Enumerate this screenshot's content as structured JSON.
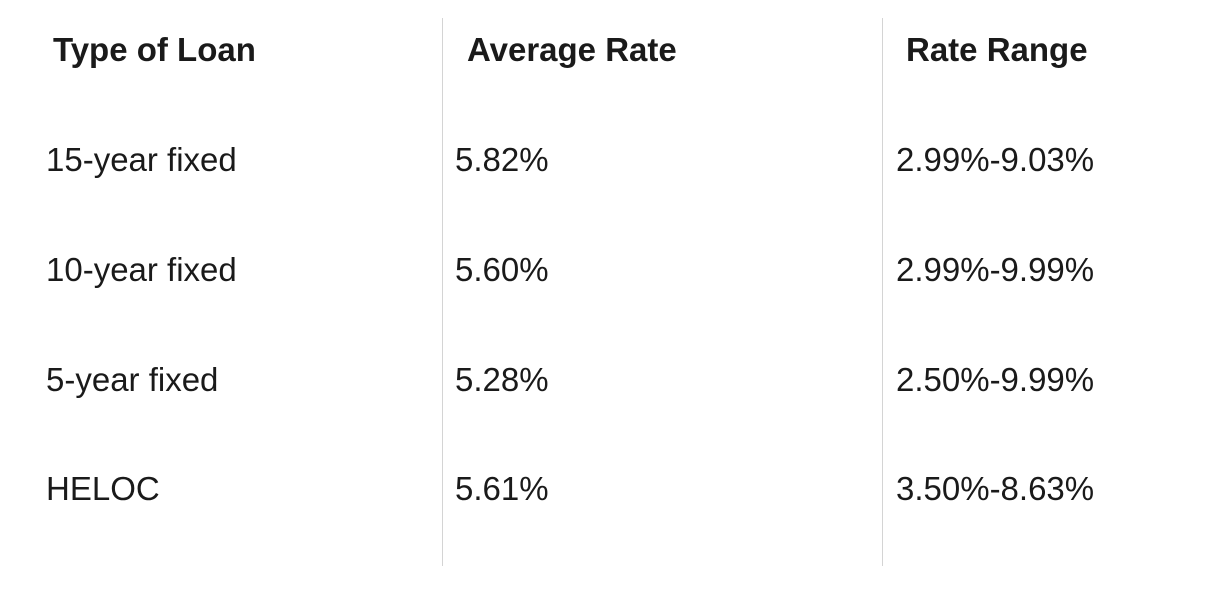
{
  "chart_data": {
    "type": "table",
    "columns": [
      "Type of Loan",
      "Average Rate",
      "Rate Range"
    ],
    "rows": [
      [
        "15-year fixed",
        "5.82%",
        "2.99%-9.03%"
      ],
      [
        "10-year fixed",
        "5.60%",
        "2.99%-9.99%"
      ],
      [
        "5-year fixed",
        "5.28%",
        "2.50%-9.99%"
      ],
      [
        "HELOC",
        "5.61%",
        "3.50%-8.63%"
      ]
    ]
  },
  "colors": {
    "text": "#1a1a1a",
    "divider": "#d4d4d4",
    "background": "#ffffff"
  }
}
